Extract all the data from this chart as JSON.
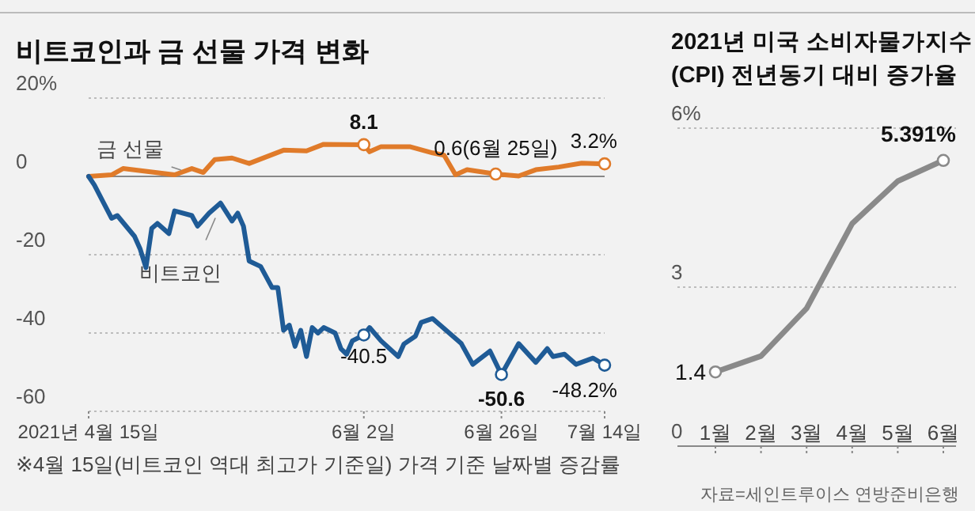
{
  "chart_data": [
    {
      "type": "line",
      "title": "비트코인과 금 선물 가격 변화",
      "xlim": [
        "2021-04-15",
        "2021-07-14"
      ],
      "ylim": [
        -60,
        20
      ],
      "yticks": [
        {
          "value": 20,
          "label": "20%"
        },
        0,
        -20,
        -40,
        -60
      ],
      "xticks": [
        {
          "value": "2021-04-15",
          "label": "2021년 4월 15일"
        },
        {
          "value": "2021-06-02",
          "label": "6월 2일"
        },
        {
          "value": "2021-06-26",
          "label": "6월 26일"
        },
        {
          "value": "2021-07-14",
          "label": "7월 14일"
        }
      ],
      "grid": "y",
      "series": [
        {
          "name": "금 선물",
          "color": "#e07b2a",
          "x": [
            "2021-04-15",
            "2021-04-19",
            "2021-04-21",
            "2021-04-30",
            "2021-05-03",
            "2021-05-05",
            "2021-05-07",
            "2021-05-10",
            "2021-05-13",
            "2021-05-19",
            "2021-05-23",
            "2021-05-26",
            "2021-06-02",
            "2021-06-03",
            "2021-06-05",
            "2021-06-10",
            "2021-06-14",
            "2021-06-16",
            "2021-06-18",
            "2021-06-20",
            "2021-06-25",
            "2021-06-29",
            "2021-07-02",
            "2021-07-06",
            "2021-07-10",
            "2021-07-14"
          ],
          "values": [
            0,
            0.4,
            2,
            0.4,
            2,
            1,
            4.3,
            4.7,
            3.3,
            6.7,
            6.5,
            8.2,
            8.1,
            6.3,
            7.6,
            7.6,
            6,
            5.4,
            0.4,
            1.7,
            0.6,
            0.1,
            1.7,
            2.4,
            3.4,
            3.2
          ]
        },
        {
          "name": "비트코인",
          "color": "#1f5b96",
          "x": [
            "2021-04-15",
            "2021-04-16",
            "2021-04-19",
            "2021-04-20",
            "2021-04-23",
            "2021-04-24",
            "2021-04-25",
            "2021-04-26",
            "2021-04-27",
            "2021-04-29",
            "2021-04-30",
            "2021-05-03",
            "2021-05-04",
            "2021-05-06",
            "2021-05-08",
            "2021-05-10",
            "2021-05-11",
            "2021-05-12",
            "2021-05-13",
            "2021-05-15",
            "2021-05-17",
            "2021-05-18",
            "2021-05-19",
            "2021-05-20",
            "2021-05-21",
            "2021-05-22",
            "2021-05-23",
            "2021-05-24",
            "2021-05-25",
            "2021-05-26",
            "2021-05-28",
            "2021-05-29",
            "2021-05-30",
            "2021-05-31",
            "2021-06-02",
            "2021-06-03",
            "2021-06-05",
            "2021-06-08",
            "2021-06-09",
            "2021-06-11",
            "2021-06-12",
            "2021-06-14",
            "2021-06-19",
            "2021-06-21",
            "2021-06-24",
            "2021-06-26",
            "2021-06-29",
            "2021-07-02",
            "2021-07-04",
            "2021-07-05",
            "2021-07-07",
            "2021-07-09",
            "2021-07-12",
            "2021-07-14"
          ],
          "values": [
            0,
            -2.2,
            -10.7,
            -10,
            -15.3,
            -18.6,
            -23.3,
            -13.3,
            -12,
            -14.6,
            -8.8,
            -10,
            -12.7,
            -9.4,
            -6.8,
            -11.4,
            -9.4,
            -12.7,
            -21.6,
            -23,
            -28.4,
            -28.4,
            -39.3,
            -38,
            -43.4,
            -39.3,
            -46,
            -38.6,
            -40,
            -38.6,
            -40,
            -44,
            -45.4,
            -42,
            -40.5,
            -38.6,
            -42,
            -46,
            -42.8,
            -40.8,
            -37.3,
            -36.3,
            -42.7,
            -48,
            -44.6,
            -50.6,
            -42.7,
            -47.5,
            -44,
            -46,
            -45.4,
            -48,
            -46.4,
            -48.2
          ]
        }
      ],
      "annotations": [
        {
          "text": "8.1",
          "x": "2021-06-02",
          "y": 8.1
        },
        {
          "text": "0.6(6월 25일)",
          "x": "2021-06-25",
          "y": 0.6
        },
        {
          "text": "3.2%",
          "x": "2021-07-14",
          "y": 3.2
        },
        {
          "text": "-40.5",
          "x": "2021-06-02",
          "y": -40.5
        },
        {
          "text": "-50.6",
          "x": "2021-06-26",
          "y": -50.6
        },
        {
          "text": "-48.2%",
          "x": "2021-07-14",
          "y": -48.2
        },
        "※4월 15일(비트코인 역대 최고가 기준일) 가격 기준 날짜별 증감률"
      ]
    },
    {
      "type": "line",
      "title": "2021년 미국 소비자물가지수 (CPI) 전년동기 대비 증가율",
      "categories": [
        "1월",
        "2월",
        "3월",
        "4월",
        "5월",
        "6월"
      ],
      "ylim": [
        0,
        6
      ],
      "yticks": [
        0,
        3,
        {
          "value": 6,
          "label": "6%"
        }
      ],
      "grid": "y",
      "series": [
        {
          "color": "#8a8a8a",
          "values": [
            1.4,
            1.7,
            2.6,
            4.2,
            5.0,
            5.391
          ],
          "value_labels": [
            "1.4",
            null,
            null,
            null,
            null,
            "5.391%"
          ]
        }
      ],
      "annotations": [
        "자료=세인트루이스 연방준비은행"
      ]
    }
  ]
}
